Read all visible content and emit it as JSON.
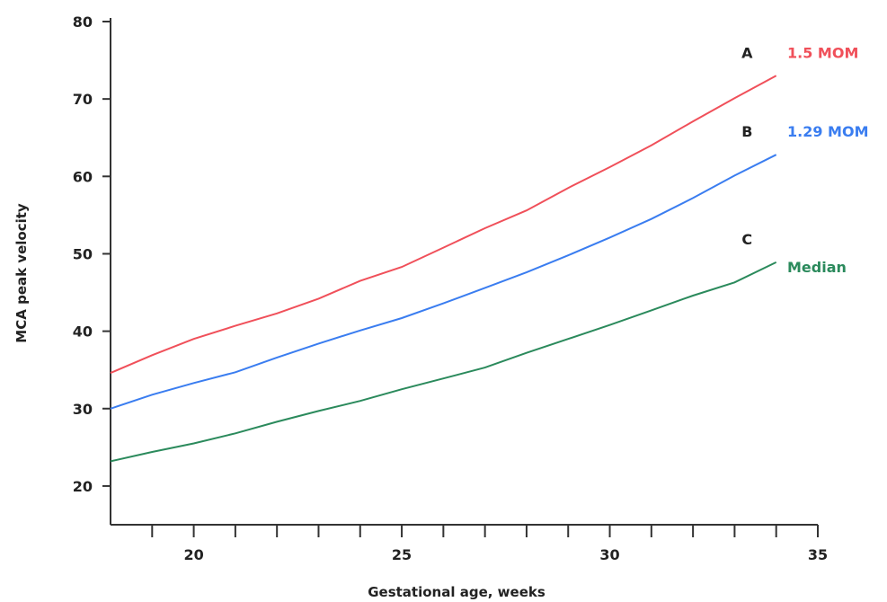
{
  "chart_data": {
    "type": "line",
    "xlabel": "Gestational age, weeks",
    "ylabel": "MCA peak velocity",
    "xlim": [
      18,
      35
    ],
    "ylim": [
      15,
      80
    ],
    "x_ticks": [
      20,
      25,
      30,
      35
    ],
    "x_minor_ticks": [
      19,
      20,
      21,
      22,
      23,
      24,
      25,
      26,
      27,
      28,
      29,
      30,
      31,
      32,
      33,
      34,
      35
    ],
    "y_ticks": [
      20,
      30,
      40,
      50,
      60,
      70,
      80
    ],
    "grid": false,
    "series": [
      {
        "name": "1.5 MOM",
        "letter": "A",
        "color": "#f0505a",
        "x": [
          18,
          19,
          20,
          21,
          22,
          23,
          24,
          25,
          26,
          27,
          28,
          29,
          30,
          31,
          32,
          33,
          34
        ],
        "values": [
          34.6,
          36.9,
          39.0,
          40.7,
          42.3,
          44.2,
          46.5,
          48.3,
          50.8,
          53.3,
          55.6,
          58.5,
          61.2,
          64.0,
          67.1,
          70.1,
          73.0
        ]
      },
      {
        "name": "1.29 MOM",
        "letter": "B",
        "color": "#3a7df0",
        "x": [
          18,
          19,
          20,
          21,
          22,
          23,
          24,
          25,
          26,
          27,
          28,
          29,
          30,
          31,
          32,
          33,
          34
        ],
        "values": [
          30.0,
          31.8,
          33.3,
          34.7,
          36.6,
          38.4,
          40.1,
          41.7,
          43.6,
          45.6,
          47.6,
          49.8,
          52.1,
          54.5,
          57.2,
          60.1,
          62.8
        ]
      },
      {
        "name": "Median",
        "letter": "C",
        "color": "#2b8a5c",
        "x": [
          18,
          19,
          20,
          21,
          22,
          23,
          24,
          25,
          26,
          27,
          28,
          29,
          30,
          31,
          32,
          33,
          34
        ],
        "values": [
          23.2,
          24.4,
          25.5,
          26.8,
          28.3,
          29.7,
          31.0,
          32.5,
          33.9,
          35.3,
          37.2,
          39.0,
          40.8,
          42.7,
          44.6,
          46.3,
          48.9
        ]
      }
    ]
  }
}
